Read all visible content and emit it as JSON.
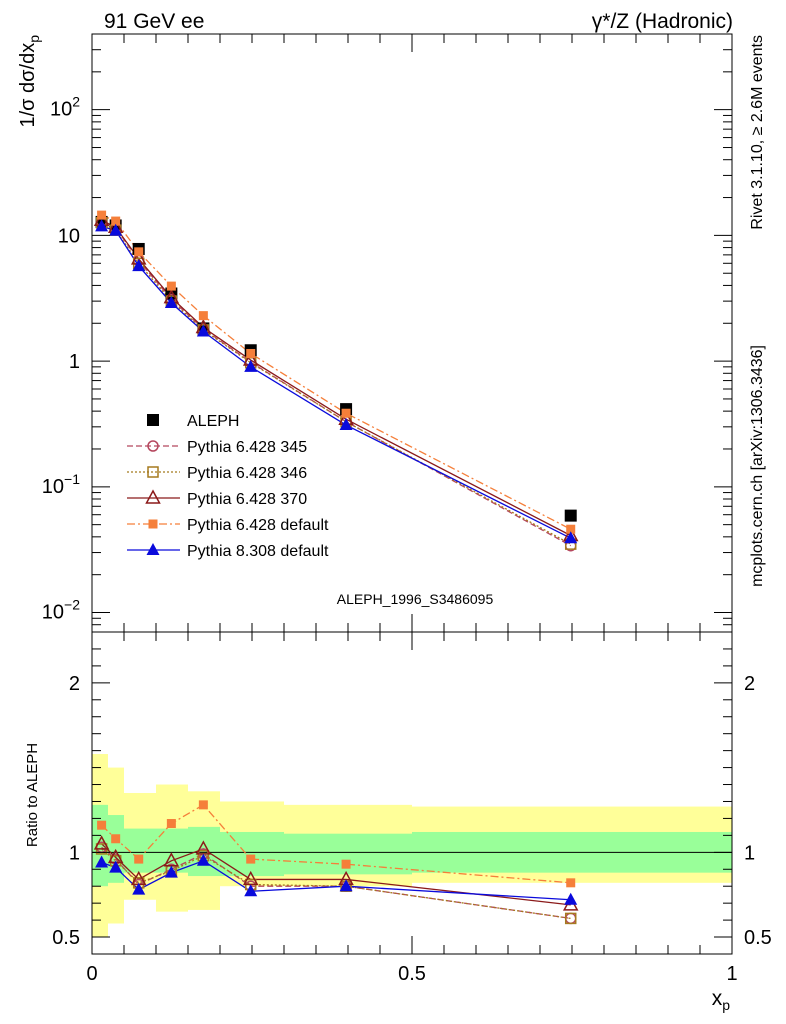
{
  "header": {
    "left": "91 GeV ee",
    "right": "γ*/Z (Hadronic)"
  },
  "side_text": {
    "rivet": "Rivet 3.1.10, ≥ 2.6M events",
    "mcplots": "mcplots.cern.ch [arXiv:1306.3436]"
  },
  "watermark": "ALEPH_1996_S3486095",
  "chart_data": {
    "type": "line",
    "x": [
      0.015,
      0.037,
      0.073,
      0.124,
      0.174,
      0.248,
      0.397,
      0.748
    ],
    "main": {
      "ylabel_parts": [
        "1/σ dσ/dx",
        "p"
      ],
      "yscale": "log",
      "ylim": [
        0.007,
        400
      ],
      "yticks": [
        {
          "value": 0.01,
          "base": "10",
          "exp": "−2"
        },
        {
          "value": 0.1,
          "base": "10",
          "exp": "−1"
        },
        {
          "value": 1,
          "label": "1"
        },
        {
          "value": 10,
          "label": "10"
        },
        {
          "value": 100,
          "base": "10",
          "exp": "2"
        }
      ],
      "series": [
        {
          "name": "ALEPH",
          "color": "#000000",
          "marker": "square-filled",
          "dash": "none",
          "values": [
            12.8,
            12.0,
            7.8,
            3.45,
            1.82,
            1.22,
            0.415,
            0.059
          ]
        },
        {
          "name": "Pythia 6.428 345",
          "color": "#b5475e",
          "marker": "circle-open",
          "dash": "6,3",
          "values": [
            13.0,
            11.5,
            6.3,
            3.1,
            1.8,
            0.98,
            0.33,
            0.034
          ]
        },
        {
          "name": "Pythia 6.428 346",
          "color": "#a57a1e",
          "marker": "square-open",
          "dash": "2,2",
          "values": [
            12.6,
            11.0,
            6.0,
            3.0,
            1.77,
            0.97,
            0.33,
            0.035
          ]
        },
        {
          "name": "Pythia 6.428 370",
          "color": "#8b1a1a",
          "marker": "triangle-open",
          "dash": "none",
          "values": [
            13.2,
            11.6,
            6.5,
            3.2,
            1.85,
            1.02,
            0.345,
            0.041
          ]
        },
        {
          "name": "Pythia 6.428 default",
          "color": "#f57f3a",
          "marker": "square-filled-small",
          "dash": "8,3,2,3",
          "values": [
            14.5,
            13.0,
            7.4,
            3.95,
            2.3,
            1.15,
            0.385,
            0.046
          ]
        },
        {
          "name": "Pythia 8.308 default",
          "color": "#0a0adc",
          "marker": "triangle-filled",
          "dash": "none",
          "values": [
            11.8,
            10.9,
            5.7,
            2.9,
            1.72,
            0.9,
            0.31,
            0.039
          ]
        }
      ]
    },
    "ratio": {
      "ylabel": "Ratio to ALEPH",
      "ylim": [
        0.4,
        2.3
      ],
      "yticks": [
        {
          "value": 0.5,
          "label": "0.5"
        },
        {
          "value": 1,
          "label": "1"
        },
        {
          "value": 2,
          "label": "2"
        }
      ],
      "bins": [
        [
          0.0,
          0.025
        ],
        [
          0.025,
          0.05
        ],
        [
          0.05,
          0.1
        ],
        [
          0.1,
          0.15
        ],
        [
          0.15,
          0.2
        ],
        [
          0.2,
          0.3
        ],
        [
          0.3,
          0.5
        ],
        [
          0.5,
          1.0
        ]
      ],
      "band_inner": [
        [
          0.8,
          1.28
        ],
        [
          0.82,
          1.22
        ],
        [
          0.88,
          1.14
        ],
        [
          0.88,
          1.14
        ],
        [
          0.86,
          1.15
        ],
        [
          0.86,
          1.12
        ],
        [
          0.87,
          1.11
        ],
        [
          0.88,
          1.12
        ]
      ],
      "band_outer": [
        [
          0.5,
          1.58
        ],
        [
          0.58,
          1.5
        ],
        [
          0.72,
          1.35
        ],
        [
          0.65,
          1.4
        ],
        [
          0.66,
          1.36
        ],
        [
          0.8,
          1.3
        ],
        [
          0.8,
          1.28
        ],
        [
          0.82,
          1.27
        ]
      ],
      "series": [
        {
          "name": "Pythia 6.428 345",
          "values": [
            1.03,
            0.96,
            0.81,
            0.9,
            0.99,
            0.8,
            0.8,
            0.61
          ]
        },
        {
          "name": "Pythia 6.428 346",
          "values": [
            1.02,
            0.95,
            0.82,
            0.89,
            0.98,
            0.81,
            0.8,
            0.61
          ]
        },
        {
          "name": "Pythia 6.428 370",
          "values": [
            1.05,
            0.97,
            0.84,
            0.95,
            1.02,
            0.84,
            0.84,
            0.69
          ]
        },
        {
          "name": "Pythia 6.428 default",
          "values": [
            1.16,
            1.08,
            0.96,
            1.17,
            1.28,
            0.96,
            0.93,
            0.82
          ]
        },
        {
          "name": "Pythia 8.308 default",
          "values": [
            0.94,
            0.91,
            0.78,
            0.88,
            0.95,
            0.77,
            0.8,
            0.72
          ]
        }
      ]
    },
    "xaxis": {
      "xlim": [
        0,
        1.0
      ],
      "label_parts": [
        "x",
        "p"
      ],
      "ticks": [
        {
          "value": 0,
          "label": "0"
        },
        {
          "value": 0.5,
          "label": "0.5"
        },
        {
          "value": 1,
          "label": "1"
        }
      ]
    },
    "legend": {
      "position": "middle-left"
    },
    "colors": {
      "band_inner": "#99ff99",
      "band_outer": "#ffff99",
      "reference_line": "#000000"
    }
  }
}
